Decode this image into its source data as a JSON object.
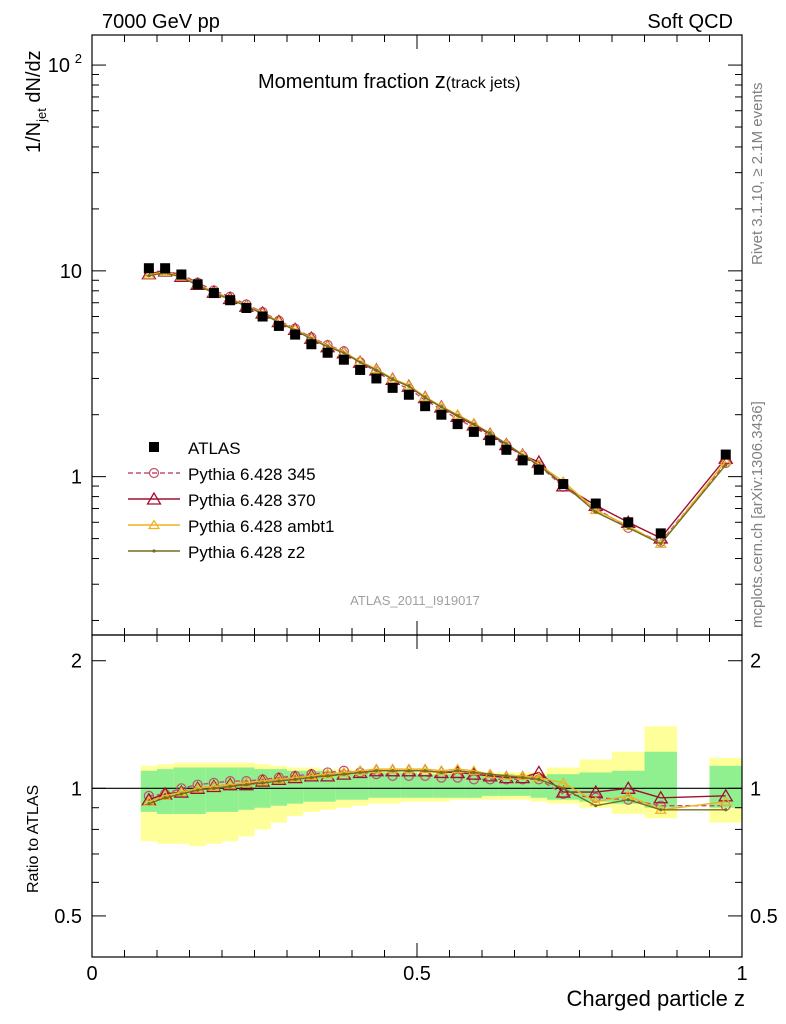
{
  "header": {
    "left": "7000 GeV pp",
    "right": "Soft QCD"
  },
  "side_labels": {
    "top": "Rivet 3.1.10, ≥ 2.1M events",
    "bottom": "mcplots.cern.ch [arXiv:1306.3436]"
  },
  "main_plot": {
    "title_main": "Momentum fraction ",
    "title_var": "z",
    "title_sub": "(track jets)",
    "ylabel_pre": "1/N",
    "ylabel_sub": "jet",
    "ylabel_post": " dN/dz",
    "watermark": "ATLAS_2011_I919017"
  },
  "ratio_plot": {
    "ylabel": "Ratio to ATLAS"
  },
  "xlabel": "Charged particle z",
  "legend": [
    {
      "label": "ATLAS",
      "color": "#000000",
      "marker": "square",
      "dash": false
    },
    {
      "label": "Pythia 6.428 345",
      "color": "#c0506e",
      "marker": "circle",
      "dash": true
    },
    {
      "label": "Pythia 6.428 370",
      "color": "#a01030",
      "marker": "triangle",
      "dash": false
    },
    {
      "label": "Pythia 6.428 ambt1",
      "color": "#f0b020",
      "marker": "triangle-small",
      "dash": false
    },
    {
      "label": "Pythia 6.428 z2",
      "color": "#707020",
      "marker": "dot",
      "dash": false
    }
  ],
  "chart_data": {
    "type": "scatter",
    "x_range": [
      0,
      1
    ],
    "y_range_main": [
      0.17,
      140
    ],
    "y_scale_main": "log",
    "y_range_ratio": [
      0.4,
      2.3
    ],
    "y_scale_ratio": "log",
    "x_ticks": [
      {
        "v": 0,
        "label": "0"
      },
      {
        "v": 0.5,
        "label": "0.5"
      },
      {
        "v": 1,
        "label": "1"
      }
    ],
    "y_ticks_main": [
      {
        "v": 1,
        "label": "1"
      },
      {
        "v": 10,
        "label": "10"
      },
      {
        "v": 100,
        "label": "10",
        "sup": "2"
      }
    ],
    "y_ticks_ratio": [
      {
        "v": 0.5,
        "label": "0.5"
      },
      {
        "v": 1,
        "label": "1"
      },
      {
        "v": 2,
        "label": "2"
      }
    ],
    "x": [
      0.0875,
      0.1125,
      0.1375,
      0.1625,
      0.1875,
      0.2125,
      0.2375,
      0.2625,
      0.2875,
      0.3125,
      0.3375,
      0.3625,
      0.3875,
      0.4125,
      0.4375,
      0.4625,
      0.4875,
      0.5125,
      0.5375,
      0.5625,
      0.5875,
      0.6125,
      0.6375,
      0.6625,
      0.6875,
      0.725,
      0.775,
      0.825,
      0.875,
      0.975
    ],
    "x_edges": [
      0.075,
      0.1,
      0.125,
      0.15,
      0.175,
      0.2,
      0.225,
      0.25,
      0.275,
      0.3,
      0.325,
      0.35,
      0.375,
      0.4,
      0.425,
      0.45,
      0.475,
      0.5,
      0.525,
      0.55,
      0.575,
      0.6,
      0.625,
      0.65,
      0.675,
      0.7,
      0.75,
      0.8,
      0.85,
      0.9,
      0.95,
      1.0
    ],
    "data": [
      10.3,
      10.3,
      9.6,
      8.6,
      7.8,
      7.2,
      6.6,
      6.0,
      5.4,
      4.9,
      4.4,
      4.0,
      3.7,
      3.3,
      3.0,
      2.7,
      2.5,
      2.2,
      2.0,
      1.8,
      1.65,
      1.5,
      1.35,
      1.2,
      1.08,
      0.92,
      0.74,
      0.6,
      0.53,
      1.28
    ],
    "band_inner": [
      [
        0.88,
        1.1
      ],
      [
        0.87,
        1.11
      ],
      [
        0.87,
        1.12
      ],
      [
        0.87,
        1.12
      ],
      [
        0.88,
        1.12
      ],
      [
        0.88,
        1.12
      ],
      [
        0.89,
        1.12
      ],
      [
        0.9,
        1.11
      ],
      [
        0.91,
        1.11
      ],
      [
        0.92,
        1.1
      ],
      [
        0.93,
        1.1
      ],
      [
        0.93,
        1.1
      ],
      [
        0.94,
        1.09
      ],
      [
        0.94,
        1.09
      ],
      [
        0.95,
        1.09
      ],
      [
        0.95,
        1.09
      ],
      [
        0.95,
        1.09
      ],
      [
        0.95,
        1.08
      ],
      [
        0.95,
        1.08
      ],
      [
        0.95,
        1.08
      ],
      [
        0.95,
        1.08
      ],
      [
        0.96,
        1.08
      ],
      [
        0.96,
        1.08
      ],
      [
        0.96,
        1.07
      ],
      [
        0.95,
        1.07
      ],
      [
        0.94,
        1.08
      ],
      [
        0.93,
        1.09
      ],
      [
        0.92,
        1.1
      ],
      [
        0.9,
        1.22
      ],
      [
        null,
        null
      ],
      [
        0.9,
        1.13
      ]
    ],
    "band_outer": [
      [
        0.75,
        1.13
      ],
      [
        0.74,
        1.14
      ],
      [
        0.74,
        1.15
      ],
      [
        0.73,
        1.15
      ],
      [
        0.74,
        1.15
      ],
      [
        0.75,
        1.15
      ],
      [
        0.77,
        1.15
      ],
      [
        0.8,
        1.14
      ],
      [
        0.83,
        1.13
      ],
      [
        0.86,
        1.12
      ],
      [
        0.88,
        1.12
      ],
      [
        0.89,
        1.11
      ],
      [
        0.9,
        1.11
      ],
      [
        0.91,
        1.1
      ],
      [
        0.92,
        1.1
      ],
      [
        0.92,
        1.1
      ],
      [
        0.93,
        1.09
      ],
      [
        0.93,
        1.09
      ],
      [
        0.93,
        1.09
      ],
      [
        0.94,
        1.09
      ],
      [
        0.94,
        1.09
      ],
      [
        0.94,
        1.09
      ],
      [
        0.94,
        1.09
      ],
      [
        0.94,
        1.09
      ],
      [
        0.93,
        1.09
      ],
      [
        0.92,
        1.12
      ],
      [
        0.9,
        1.17
      ],
      [
        0.87,
        1.22
      ],
      [
        0.85,
        1.4
      ],
      [
        null,
        null
      ],
      [
        0.83,
        1.18
      ]
    ],
    "series": [
      {
        "name": "Pythia 6.428 345",
        "color": "#c0506e",
        "dash": true,
        "marker": "circle",
        "ratio": [
          0.96,
          0.97,
          1.0,
          1.02,
          1.03,
          1.04,
          1.04,
          1.05,
          1.06,
          1.07,
          1.08,
          1.09,
          1.1,
          1.09,
          1.08,
          1.07,
          1.07,
          1.07,
          1.06,
          1.06,
          1.05,
          1.05,
          1.05,
          1.05,
          1.05,
          0.97,
          0.95,
          0.94,
          0.91,
          0.91
        ]
      },
      {
        "name": "Pythia 6.428 370",
        "color": "#a01030",
        "dash": false,
        "marker": "triangle",
        "ratio": [
          0.94,
          0.97,
          0.98,
          1.0,
          1.01,
          1.02,
          1.02,
          1.04,
          1.05,
          1.06,
          1.07,
          1.07,
          1.08,
          1.09,
          1.1,
          1.1,
          1.1,
          1.1,
          1.09,
          1.09,
          1.08,
          1.07,
          1.06,
          1.06,
          1.09,
          0.98,
          0.98,
          1.0,
          0.95,
          0.96
        ]
      },
      {
        "name": "Pythia 6.428 ambt1",
        "color": "#f0b020",
        "dash": false,
        "marker": "triangle-small",
        "ratio": [
          0.93,
          0.96,
          0.98,
          1.0,
          1.01,
          1.02,
          1.03,
          1.04,
          1.05,
          1.06,
          1.07,
          1.08,
          1.09,
          1.1,
          1.11,
          1.11,
          1.11,
          1.11,
          1.1,
          1.11,
          1.1,
          1.08,
          1.07,
          1.07,
          1.06,
          1.03,
          0.93,
          0.96,
          0.89,
          0.93
        ]
      },
      {
        "name": "Pythia 6.428 z2",
        "color": "#707020",
        "dash": false,
        "marker": "dot",
        "ratio": [
          0.92,
          0.95,
          0.97,
          0.99,
          1.0,
          1.01,
          1.02,
          1.03,
          1.04,
          1.05,
          1.06,
          1.07,
          1.08,
          1.09,
          1.1,
          1.1,
          1.1,
          1.1,
          1.09,
          1.1,
          1.09,
          1.08,
          1.07,
          1.06,
          1.05,
          1.0,
          0.91,
          0.94,
          0.89,
          0.89
        ]
      }
    ]
  }
}
